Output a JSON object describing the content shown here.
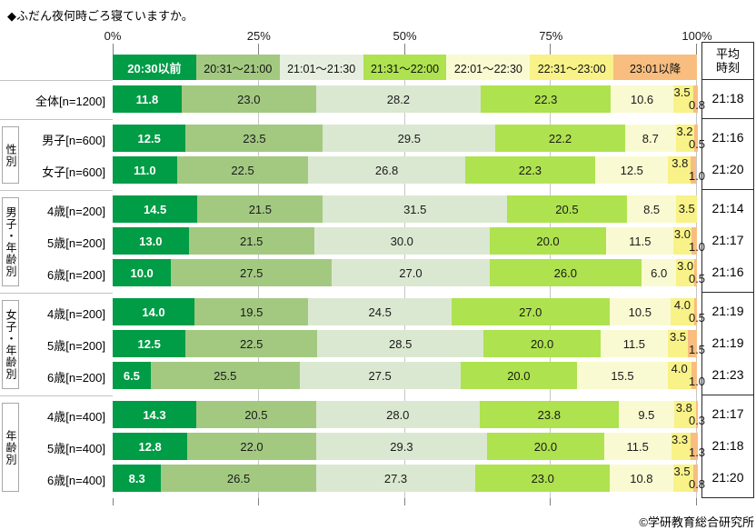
{
  "title": "◆ふだん夜何時ごろ寝ていますか。",
  "footer": "©学研教育総合研究所",
  "axis": {
    "tick_labels": [
      "0%",
      "25%",
      "50%",
      "75%",
      "100%"
    ],
    "tick_positions": [
      0,
      25,
      50,
      75,
      100
    ]
  },
  "avg_column": {
    "header_lines": [
      "平均",
      "時刻"
    ]
  },
  "chart_data": {
    "type": "bar",
    "stacked": true,
    "orientation": "horizontal",
    "unit": "%",
    "xlim": [
      0,
      100
    ],
    "legend_position": "top",
    "categories": [
      "20:30以前",
      "20:31～21:00",
      "21:01～21:30",
      "21:31～22:00",
      "22:01～22:30",
      "22:31～23:00",
      "23:01以降"
    ],
    "colors": [
      "#009c46",
      "#a3c981",
      "#dbe8d1",
      "#aee24e",
      "#fafad2",
      "#f8f288",
      "#f8bd7f"
    ],
    "legend_colors": [
      "#009c46",
      "#a3c981",
      "#e6efdf",
      "#aee24e",
      "#fafad2",
      "#f8f288",
      "#f8bd7f"
    ],
    "groups": [
      {
        "name": "",
        "rows": [
          {
            "label": "全体[n=1200]",
            "values": [
              11.8,
              23.0,
              28.2,
              22.3,
              10.6,
              3.5,
              0.8
            ],
            "avg": "21:18"
          }
        ]
      },
      {
        "name": "性別",
        "rows": [
          {
            "label": "男子[n=600]",
            "values": [
              12.5,
              23.5,
              29.5,
              22.2,
              8.7,
              3.2,
              0.5
            ],
            "avg": "21:16"
          },
          {
            "label": "女子[n=600]",
            "values": [
              11.0,
              22.5,
              26.8,
              22.3,
              12.5,
              3.8,
              1.0
            ],
            "avg": "21:20"
          }
        ]
      },
      {
        "name": "男子・年齢別",
        "rows": [
          {
            "label": "4歳[n=200]",
            "values": [
              14.5,
              21.5,
              31.5,
              20.5,
              8.5,
              3.5,
              0
            ],
            "avg": "21:14"
          },
          {
            "label": "5歳[n=200]",
            "values": [
              13.0,
              21.5,
              30.0,
              20.0,
              11.5,
              3.0,
              1.0
            ],
            "avg": "21:17"
          },
          {
            "label": "6歳[n=200]",
            "values": [
              10.0,
              27.5,
              27.0,
              26.0,
              6.0,
              3.0,
              0.5
            ],
            "avg": "21:16"
          }
        ]
      },
      {
        "name": "女子・年齢別",
        "rows": [
          {
            "label": "4歳[n=200]",
            "values": [
              14.0,
              19.5,
              24.5,
              27.0,
              10.5,
              4.0,
              0.5
            ],
            "avg": "21:19"
          },
          {
            "label": "5歳[n=200]",
            "values": [
              12.5,
              22.5,
              28.5,
              20.0,
              11.5,
              3.5,
              1.5
            ],
            "avg": "21:19"
          },
          {
            "label": "6歳[n=200]",
            "values": [
              6.5,
              25.5,
              27.5,
              20.0,
              15.5,
              4.0,
              1.0
            ],
            "avg": "21:23"
          }
        ]
      },
      {
        "name": "年齢別",
        "rows": [
          {
            "label": "4歳[n=400]",
            "values": [
              14.3,
              20.5,
              28.0,
              23.8,
              9.5,
              3.8,
              0.3
            ],
            "avg": "21:17"
          },
          {
            "label": "5歳[n=400]",
            "values": [
              12.8,
              22.0,
              29.3,
              20.0,
              11.5,
              3.3,
              1.3
            ],
            "avg": "21:18"
          },
          {
            "label": "6歳[n=400]",
            "values": [
              8.3,
              26.5,
              27.3,
              23.0,
              10.8,
              3.5,
              0.8
            ],
            "avg": "21:20"
          }
        ]
      }
    ]
  }
}
